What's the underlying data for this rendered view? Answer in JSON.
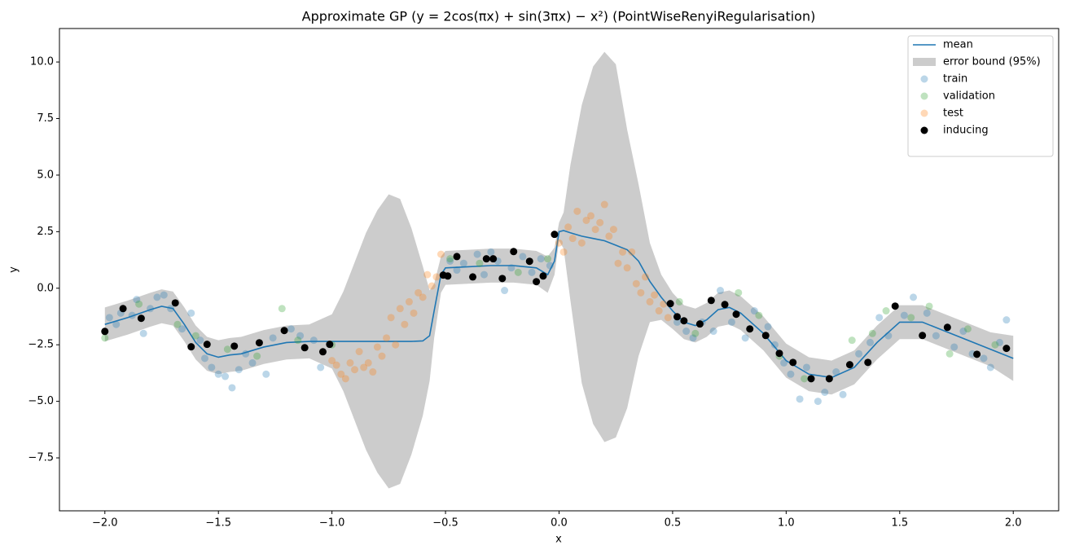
{
  "chart_data": {
    "type": "gp",
    "title": "Approximate GP (y = 2cos(πx) + sin(3πx) − x²) (PointWiseRenyiRegularisation)",
    "x_label": "x",
    "y_label": "y",
    "xlim": [
      -2.2,
      2.2
    ],
    "ylim": [
      -9.84,
      11.48
    ],
    "xticks": [
      {
        "value": -2,
        "label": "−2.0"
      },
      {
        "value": -1.5,
        "label": "−1.5"
      },
      {
        "value": -1,
        "label": "−1.0"
      },
      {
        "value": -0.5,
        "label": "−0.5"
      },
      {
        "value": 0,
        "label": "0.0"
      },
      {
        "value": 0.5,
        "label": "0.5"
      },
      {
        "value": 1,
        "label": "1.0"
      },
      {
        "value": 1.5,
        "label": "1.5"
      },
      {
        "value": 2,
        "label": "2.0"
      }
    ],
    "yticks": [
      {
        "value": -7.5,
        "label": "−7.5"
      },
      {
        "value": -5,
        "label": "−5.0"
      },
      {
        "value": -2.5,
        "label": "−2.5"
      },
      {
        "value": 0,
        "label": "0.0"
      },
      {
        "value": 2.5,
        "label": "2.5"
      },
      {
        "value": 5,
        "label": "5.0"
      },
      {
        "value": 7.5,
        "label": "7.5"
      },
      {
        "value": 10,
        "label": "10.0"
      }
    ],
    "legend": "upper right",
    "x": [
      -2.0,
      -1.9,
      -1.8,
      -1.75,
      -1.7,
      -1.65,
      -1.6,
      -1.55,
      -1.5,
      -1.45,
      -1.4,
      -1.3,
      -1.2,
      -1.1,
      -1.0,
      -0.95,
      -0.9,
      -0.85,
      -0.8,
      -0.75,
      -0.7,
      -0.65,
      -0.6,
      -0.57,
      -0.55,
      -0.52,
      -0.5,
      -0.4,
      -0.3,
      -0.2,
      -0.1,
      -0.05,
      -0.02,
      0.0,
      0.02,
      0.05,
      0.1,
      0.15,
      0.2,
      0.25,
      0.3,
      0.35,
      0.4,
      0.45,
      0.5,
      0.55,
      0.6,
      0.65,
      0.7,
      0.75,
      0.8,
      0.9,
      1.0,
      1.1,
      1.2,
      1.3,
      1.4,
      1.5,
      1.6,
      1.7,
      1.8,
      1.9,
      2.0
    ],
    "series": [
      {
        "name": "error bound (95%)",
        "kind": "band",
        "color": "#cccccc",
        "lower": [
          -2.35,
          -2.05,
          -1.7,
          -1.55,
          -1.65,
          -2.35,
          -3.15,
          -3.65,
          -3.8,
          -3.7,
          -3.65,
          -3.35,
          -3.15,
          -3.1,
          -3.55,
          -4.55,
          -5.85,
          -7.15,
          -8.15,
          -8.85,
          -8.65,
          -7.35,
          -5.63,
          -4.1,
          -2.2,
          -0.2,
          0.15,
          0.2,
          0.25,
          0.25,
          0.15,
          -0.2,
          0.6,
          2.1,
          1.75,
          -0.55,
          -4.2,
          -6.0,
          -6.8,
          -6.6,
          -5.3,
          -3.0,
          -1.5,
          -1.4,
          -1.8,
          -2.25,
          -2.4,
          -2.15,
          -1.7,
          -1.6,
          -1.85,
          -2.75,
          -3.95,
          -4.55,
          -4.7,
          -4.25,
          -3.15,
          -2.25,
          -2.25,
          -2.65,
          -3.05,
          -3.45,
          -4.1
        ],
        "upper": [
          -0.85,
          -0.55,
          -0.2,
          -0.05,
          -0.15,
          -0.85,
          -1.65,
          -2.15,
          -2.3,
          -2.2,
          -2.15,
          -1.85,
          -1.65,
          -1.6,
          -1.15,
          -0.15,
          1.15,
          2.45,
          3.45,
          4.15,
          3.95,
          2.65,
          0.97,
          -0.1,
          0.2,
          1.4,
          1.65,
          1.7,
          1.75,
          1.75,
          1.65,
          1.4,
          1.8,
          2.9,
          3.35,
          5.45,
          8.1,
          9.8,
          10.45,
          9.9,
          7.0,
          4.6,
          2.0,
          0.6,
          -0.2,
          -0.75,
          -0.9,
          -0.65,
          -0.2,
          -0.1,
          -0.35,
          -1.25,
          -2.45,
          -3.05,
          -3.2,
          -2.75,
          -1.65,
          -0.75,
          -0.75,
          -1.15,
          -1.55,
          -1.95,
          -2.1
        ]
      },
      {
        "name": "mean",
        "kind": "line",
        "color": "#1f77b4",
        "values": [
          -1.6,
          -1.3,
          -0.95,
          -0.8,
          -0.9,
          -1.6,
          -2.4,
          -2.9,
          -3.05,
          -2.95,
          -2.9,
          -2.6,
          -2.4,
          -2.35,
          -2.35,
          -2.35,
          -2.35,
          -2.35,
          -2.35,
          -2.35,
          -2.35,
          -2.35,
          -2.33,
          -2.1,
          -1.0,
          0.6,
          0.9,
          0.95,
          1.0,
          1.0,
          0.9,
          0.6,
          1.2,
          2.5,
          2.55,
          2.45,
          2.3,
          2.2,
          2.1,
          1.9,
          1.7,
          1.2,
          0.3,
          -0.4,
          -1.0,
          -1.5,
          -1.65,
          -1.4,
          -0.95,
          -0.85,
          -1.1,
          -2.0,
          -3.2,
          -3.8,
          -3.95,
          -3.5,
          -2.4,
          -1.5,
          -1.5,
          -1.9,
          -2.3,
          -2.7,
          -3.1
        ]
      },
      {
        "name": "train",
        "kind": "scatter",
        "color": "#1f77b4",
        "opacity": 0.3,
        "x": [
          -1.98,
          -1.95,
          -1.93,
          -1.88,
          -1.86,
          -1.83,
          -1.8,
          -1.77,
          -1.74,
          -1.71,
          -1.66,
          -1.62,
          -1.58,
          -1.56,
          -1.53,
          -1.5,
          -1.47,
          -1.44,
          -1.41,
          -1.38,
          -1.35,
          -1.29,
          -1.26,
          -1.18,
          -1.14,
          -1.08,
          -1.05,
          -0.48,
          -0.45,
          -0.42,
          -0.36,
          -0.33,
          -0.3,
          -0.27,
          -0.24,
          -0.21,
          -0.16,
          -0.12,
          -0.08,
          -0.04,
          0.52,
          0.56,
          0.59,
          0.63,
          0.68,
          0.71,
          0.76,
          0.82,
          0.86,
          0.92,
          0.95,
          0.99,
          1.02,
          1.06,
          1.09,
          1.14,
          1.17,
          1.22,
          1.25,
          1.32,
          1.37,
          1.41,
          1.45,
          1.52,
          1.56,
          1.62,
          1.66,
          1.74,
          1.78,
          1.82,
          1.87,
          1.9,
          1.94,
          1.97
        ],
        "y": [
          -1.3,
          -1.6,
          -1.1,
          -1.2,
          -0.5,
          -2.0,
          -0.9,
          -0.4,
          -0.3,
          -0.9,
          -1.8,
          -1.1,
          -2.3,
          -3.1,
          -3.5,
          -3.8,
          -3.9,
          -4.4,
          -3.6,
          -2.9,
          -3.3,
          -3.8,
          -2.2,
          -1.8,
          -2.1,
          -2.3,
          -3.5,
          1.2,
          0.8,
          1.1,
          1.5,
          0.6,
          1.6,
          1.2,
          -0.1,
          0.9,
          1.4,
          0.7,
          1.3,
          1.0,
          -1.5,
          -1.9,
          -2.2,
          -1.5,
          -1.9,
          -0.1,
          -1.5,
          -2.2,
          -1.0,
          -1.7,
          -2.5,
          -3.3,
          -3.8,
          -4.9,
          -3.5,
          -5.0,
          -4.6,
          -3.7,
          -4.7,
          -2.9,
          -2.4,
          -1.3,
          -2.1,
          -1.2,
          -0.4,
          -1.1,
          -2.1,
          -2.6,
          -1.9,
          -2.9,
          -3.1,
          -3.5,
          -2.4,
          -1.4
        ]
      },
      {
        "name": "validation",
        "kind": "scatter",
        "color": "#2ca02c",
        "opacity": 0.3,
        "x": [
          -2.0,
          -1.85,
          -1.68,
          -1.6,
          -1.46,
          -1.33,
          -1.22,
          -1.15,
          -1.0,
          -0.48,
          -0.35,
          -0.18,
          -0.05,
          0.53,
          0.6,
          0.79,
          0.88,
          0.97,
          1.08,
          1.29,
          1.38,
          1.44,
          1.55,
          1.63,
          1.72,
          1.8,
          1.92
        ],
        "y": [
          -2.2,
          -0.7,
          -1.6,
          -2.1,
          -2.7,
          -3.0,
          -0.9,
          -2.3,
          -2.5,
          1.3,
          1.1,
          0.7,
          1.3,
          -0.6,
          -2.0,
          -0.2,
          -1.2,
          -3.0,
          -4.0,
          -2.3,
          -2.0,
          -1.0,
          -1.3,
          -0.8,
          -2.9,
          -1.8,
          -2.5
        ]
      },
      {
        "name": "test",
        "kind": "scatter",
        "color": "#ff7f0e",
        "opacity": 0.3,
        "x": [
          -1.0,
          -0.98,
          -0.96,
          -0.94,
          -0.92,
          -0.9,
          -0.88,
          -0.86,
          -0.84,
          -0.82,
          -0.8,
          -0.78,
          -0.76,
          -0.74,
          -0.72,
          -0.7,
          -0.68,
          -0.66,
          -0.64,
          -0.62,
          -0.6,
          -0.58,
          -0.56,
          -0.54,
          -0.52,
          0.0,
          0.02,
          0.04,
          0.06,
          0.08,
          0.1,
          0.12,
          0.14,
          0.16,
          0.18,
          0.2,
          0.22,
          0.24,
          0.26,
          0.28,
          0.3,
          0.32,
          0.34,
          0.36,
          0.38,
          0.4,
          0.42,
          0.44,
          0.46,
          0.48
        ],
        "y": [
          -3.2,
          -3.4,
          -3.8,
          -4.0,
          -3.3,
          -3.6,
          -2.8,
          -3.5,
          -3.3,
          -3.7,
          -2.6,
          -3.0,
          -2.2,
          -1.3,
          -2.5,
          -0.9,
          -1.6,
          -0.6,
          -1.1,
          -0.2,
          -0.4,
          0.6,
          0.1,
          0.5,
          1.5,
          2.0,
          1.6,
          2.7,
          2.2,
          3.4,
          2.0,
          3.0,
          3.2,
          2.6,
          2.9,
          3.7,
          2.3,
          2.6,
          1.1,
          1.6,
          0.9,
          1.6,
          0.2,
          -0.2,
          0.5,
          -0.6,
          -0.3,
          -1.0,
          -0.7,
          -1.3
        ]
      },
      {
        "name": "inducing",
        "kind": "scatter",
        "color": "#000000",
        "opacity": 1,
        "x": [
          -2.0,
          -1.92,
          -1.84,
          -1.69,
          -1.62,
          -1.55,
          -1.43,
          -1.32,
          -1.21,
          -1.12,
          -1.04,
          -1.01,
          -0.51,
          -0.49,
          -0.45,
          -0.38,
          -0.32,
          -0.29,
          -0.25,
          -0.2,
          -0.13,
          -0.1,
          -0.07,
          -0.02,
          0.49,
          0.52,
          0.55,
          0.62,
          0.67,
          0.73,
          0.78,
          0.84,
          0.91,
          0.97,
          1.03,
          1.11,
          1.19,
          1.28,
          1.36,
          1.48,
          1.6,
          1.71,
          1.84,
          1.97
        ],
        "y": [
          -1.91,
          -0.9,
          -1.33,
          -0.65,
          -2.59,
          -2.48,
          -2.56,
          -2.41,
          -1.87,
          -2.63,
          -2.81,
          -2.48,
          0.58,
          0.54,
          1.4,
          0.5,
          1.3,
          1.3,
          0.43,
          1.62,
          1.19,
          0.29,
          0.54,
          2.38,
          -0.68,
          -1.26,
          -1.44,
          -1.58,
          -0.54,
          -0.72,
          -1.15,
          -1.8,
          -2.09,
          -2.88,
          -3.28,
          -4.0,
          -4.0,
          -3.38,
          -3.28,
          -0.79,
          -2.09,
          -1.73,
          -2.92,
          -2.66
        ]
      }
    ]
  }
}
